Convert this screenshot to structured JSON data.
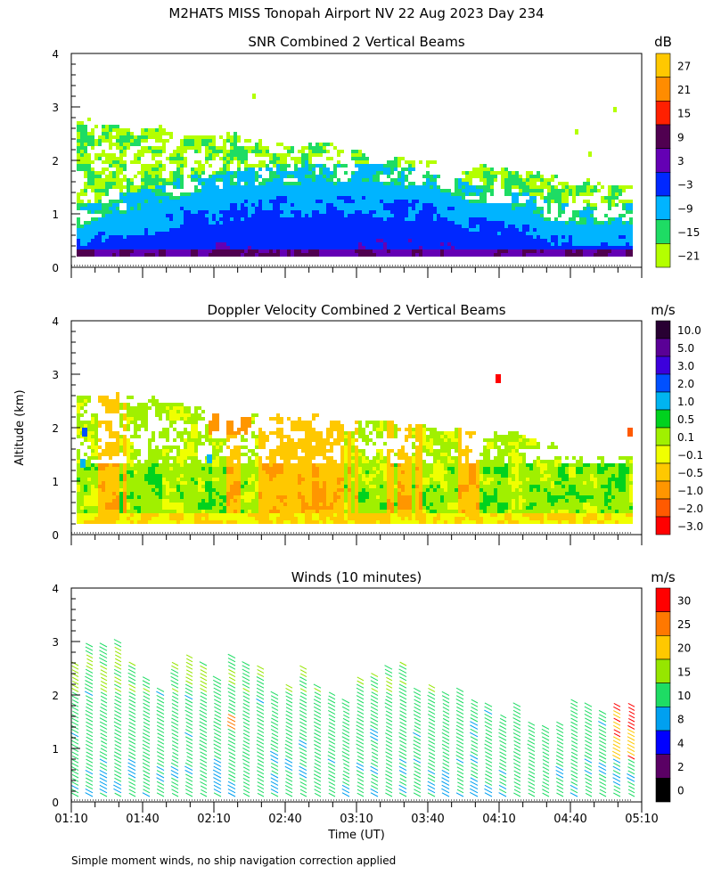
{
  "header": {
    "title": "M2HATS MISS Tonopah Airport NV  22 Aug 2023 Day 234",
    "footnote": "Simple moment winds, no ship navigation correction applied"
  },
  "chart_data": [
    {
      "type": "heatmap",
      "title": "SNR Combined 2 Vertical Beams",
      "ylabel": "",
      "ylim": [
        0,
        4
      ],
      "yticks": [
        "0",
        "1",
        "2",
        "3",
        "4"
      ],
      "colorbar": {
        "unit": "dB",
        "labels": [
          "27",
          "21",
          "15",
          "9",
          "3",
          "−3",
          "−9",
          "−15",
          "−21"
        ],
        "colors": [
          "#ffc800",
          "#ff8c00",
          "#ff2000",
          "#500050",
          "#6400b4",
          "#0028ff",
          "#00b4ff",
          "#1edc64",
          "#b4ff00"
        ]
      }
    },
    {
      "type": "heatmap",
      "title": "Doppler Velocity Combined 2 Vertical Beams",
      "ylabel": "Altitude (km)",
      "ylim": [
        0,
        4
      ],
      "yticks": [
        "0",
        "1",
        "2",
        "3",
        "4"
      ],
      "colorbar": {
        "unit": "m/s",
        "labels": [
          "10.0",
          "5.0",
          "3.0",
          "2.0",
          "1.0",
          "0.5",
          "0.1",
          "−0.1",
          "−0.5",
          "−1.0",
          "−2.0",
          "−3.0"
        ],
        "colors": [
          "#280032",
          "#5a0096",
          "#3c00dc",
          "#0050ff",
          "#00b4f0",
          "#00d21e",
          "#a0f000",
          "#f0ff00",
          "#ffc800",
          "#ff9600",
          "#ff5a00",
          "#ff0000"
        ]
      }
    },
    {
      "type": "wind_barbs",
      "title": "Winds (10 minutes)",
      "xlabel": "Time (UT)",
      "ylim": [
        0,
        4
      ],
      "yticks": [
        "0",
        "1",
        "2",
        "3",
        "4"
      ],
      "xticks": [
        "01:10",
        "01:40",
        "02:10",
        "02:40",
        "03:10",
        "03:40",
        "04:10",
        "04:40",
        "05:10"
      ],
      "colorbar": {
        "unit": "m/s",
        "labels": [
          "30",
          "25",
          "20",
          "15",
          "10",
          "8",
          "4",
          "2",
          "0"
        ],
        "colors": [
          "#ff0000",
          "#ff7800",
          "#ffc800",
          "#96e600",
          "#1edc64",
          "#00a0f0",
          "#0000ff",
          "#5a0064",
          "#000000"
        ]
      },
      "profile_times": [
        "01:13",
        "01:19",
        "01:25",
        "01:31",
        "01:37",
        "01:43",
        "01:49",
        "01:55",
        "02:01",
        "02:07",
        "02:13",
        "02:19",
        "02:25",
        "02:31",
        "02:37",
        "02:43",
        "02:49",
        "02:55",
        "03:01",
        "03:07",
        "03:13",
        "03:19",
        "03:25",
        "03:31",
        "03:37",
        "03:43",
        "03:49",
        "03:55",
        "04:01",
        "04:07",
        "04:13",
        "04:19",
        "04:25",
        "04:31",
        "04:37",
        "04:43",
        "04:49",
        "04:55",
        "05:01",
        "05:07"
      ],
      "profile_top_km": [
        2.6,
        2.9,
        2.9,
        3.0,
        2.6,
        2.3,
        2.1,
        2.6,
        2.7,
        2.6,
        2.3,
        2.7,
        2.6,
        2.5,
        2.0,
        2.2,
        2.5,
        2.2,
        2.0,
        1.9,
        2.3,
        2.4,
        2.5,
        2.6,
        2.1,
        2.2,
        2.0,
        2.1,
        1.9,
        1.8,
        1.6,
        1.8,
        1.5,
        1.4,
        1.5,
        1.9,
        1.8,
        1.7,
        1.8,
        1.8
      ]
    }
  ]
}
